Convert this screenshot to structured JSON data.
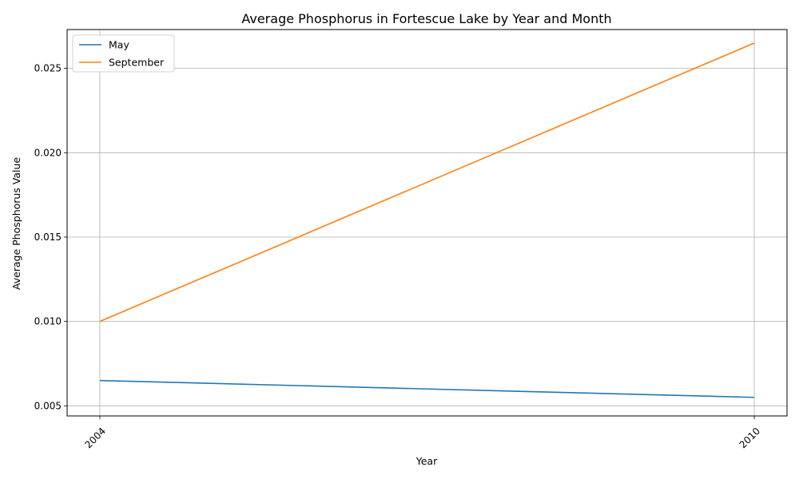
{
  "chart_data": {
    "type": "line",
    "title": "Average Phosphorus in Fortescue Lake by Year and Month",
    "xlabel": "Year",
    "ylabel": "Average Phosphorus Value",
    "x": [
      2004,
      2010
    ],
    "x_tick_labels": [
      "2004",
      "2010"
    ],
    "xlim": [
      2003.7,
      2010.3
    ],
    "ylim": [
      0.0044,
      0.0273
    ],
    "y_ticks": [
      0.005,
      0.01,
      0.015,
      0.02,
      0.025
    ],
    "y_tick_labels": [
      "0.005",
      "0.010",
      "0.015",
      "0.020",
      "0.025"
    ],
    "grid": true,
    "legend_position": "upper-left",
    "series": [
      {
        "name": "May",
        "color": "#1f77b4",
        "values": [
          0.0065,
          0.0055
        ]
      },
      {
        "name": "September",
        "color": "#ff7f0e",
        "values": [
          0.01,
          0.0265
        ]
      }
    ]
  }
}
